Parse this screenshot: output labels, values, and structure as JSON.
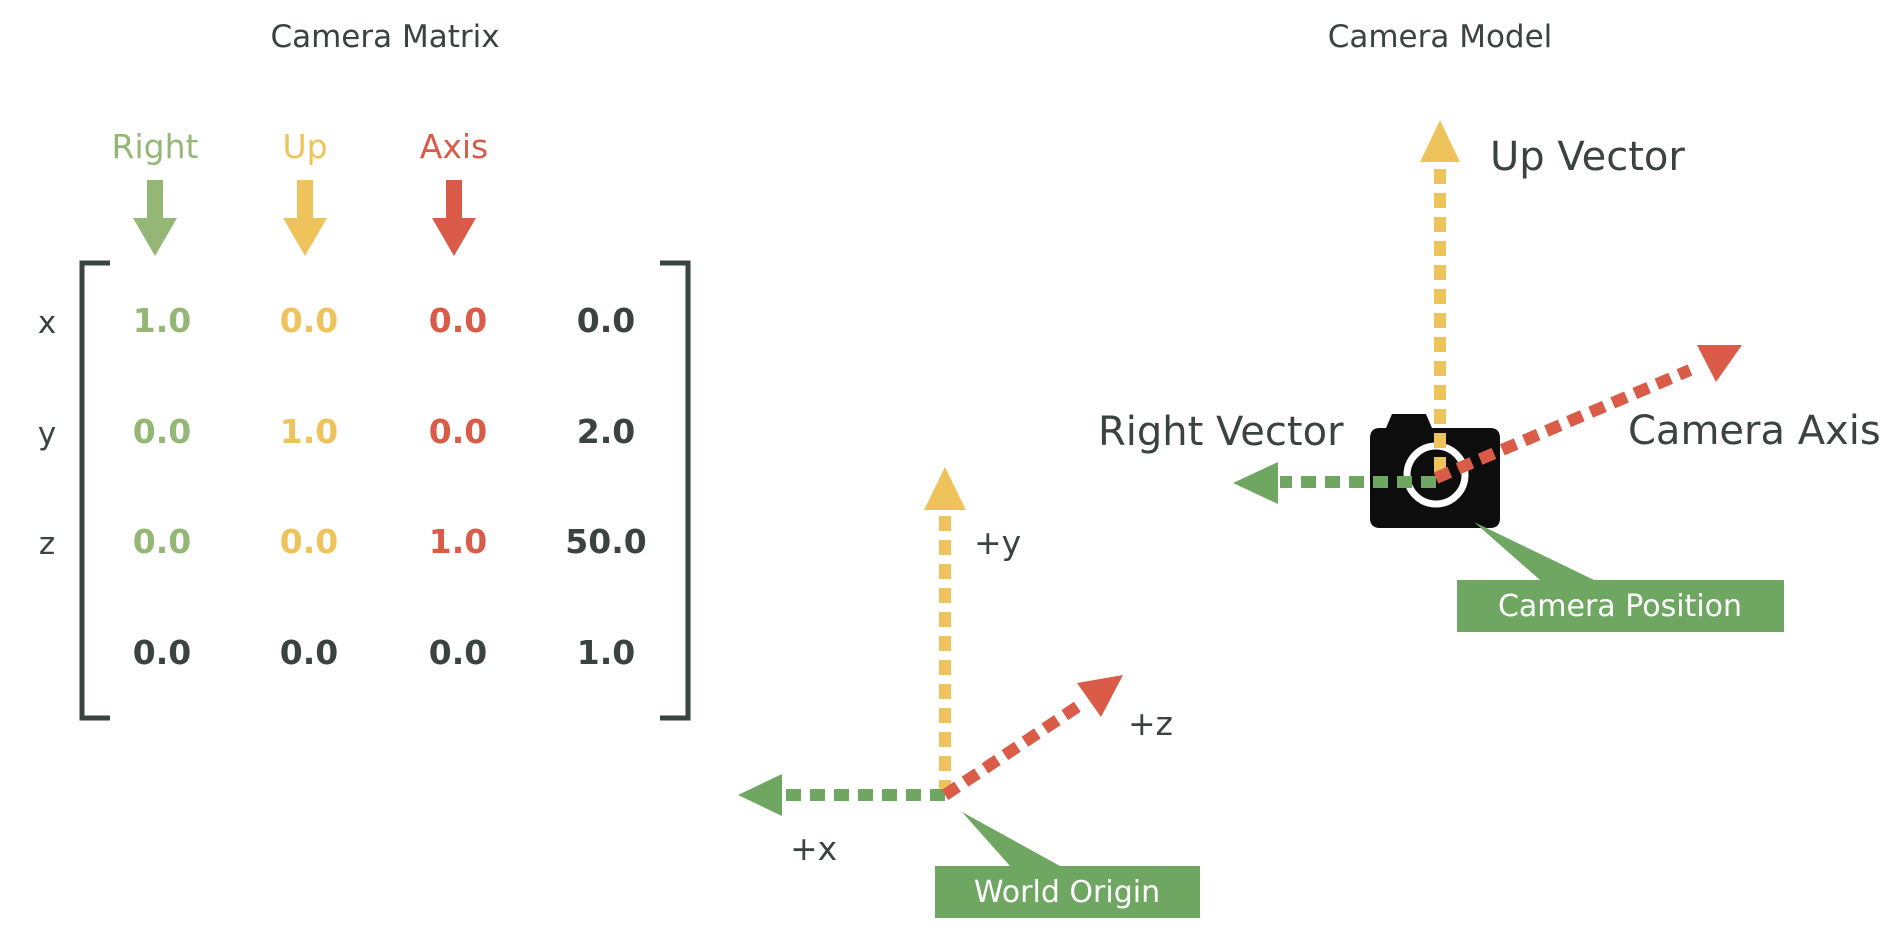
{
  "colors": {
    "right": "#94b775",
    "up": "#efc35b",
    "axis": "#d95b48",
    "dark": "#3b4340",
    "callout": "#6fa762",
    "vector_green": "#6fa762"
  },
  "matrix": {
    "title": "Camera Matrix",
    "headers": [
      "Right",
      "Up",
      "Axis"
    ],
    "row_labels": [
      "x",
      "y",
      "z",
      ""
    ],
    "rows": [
      [
        "1.0",
        "0.0",
        "0.0",
        "0.0"
      ],
      [
        "0.0",
        "1.0",
        "0.0",
        "2.0"
      ],
      [
        "0.0",
        "0.0",
        "1.0",
        "50.0"
      ],
      [
        "0.0",
        "0.0",
        "0.0",
        "1.0"
      ]
    ]
  },
  "world": {
    "y_label": "+y",
    "z_label": "+z",
    "x_label": "+x",
    "origin_label": "World Origin"
  },
  "model": {
    "title": "Camera Model",
    "up_label": "Up Vector",
    "right_label": "Right Vector",
    "axis_label": "Camera Axis",
    "position_label": "Camera Position",
    "camera_icon": "camera-icon"
  }
}
